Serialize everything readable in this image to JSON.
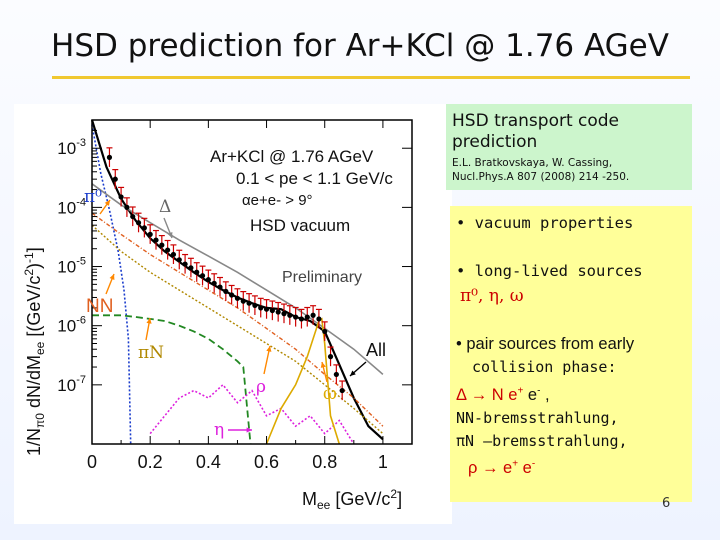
{
  "slide": {
    "title": "HSD prediction for Ar+KCl @ 1.76 AGeV",
    "page_number": "6"
  },
  "green_box": {
    "heading_line1": "HSD transport code",
    "heading_line2": "prediction",
    "ref_line1": "E.L. Bratkovskaya, W. Cassing,",
    "ref_line2": "Nucl.Phys.A 807 (2008) 214 -250."
  },
  "yellow_box": {
    "b1": "• vacuum properties",
    "b2": "• long-lived sources",
    "b2_particles": "π⁰,  η,  ω",
    "b3_line1": "• pair sources from early",
    "b3_line2": "collision phase:",
    "b3_line3_pre": "Δ → N e",
    "b3_line3_sup1": "+",
    "b3_line3_mid": " e",
    "b3_line3_sup2": "-",
    "b3_line3_post": " ,",
    "b3_line4": "NN-bremsstrahlung,",
    "b3_line5": "πN –bremsstrahlung,",
    "b3_line6_pre": "ρ → e",
    "b3_line6_sup1": "+",
    "b3_line6_mid": " e",
    "b3_line6_sup2": "-"
  },
  "chart_data": {
    "type": "line",
    "yscale": "log",
    "xlim": [
      0,
      1.1
    ],
    "ylim": [
      1e-08,
      0.003
    ],
    "xticks": [
      0,
      0.2,
      0.4,
      0.6,
      0.8,
      1
    ],
    "xtick_labels": [
      "0",
      "0.2",
      "0.4",
      "0.6",
      "0.8",
      "1"
    ],
    "ytick_labels": [
      "10-7",
      "10-6",
      "10-5",
      "10-4",
      "10-3"
    ],
    "ytick_values": [
      1e-07,
      1e-06,
      1e-05,
      0.0001,
      0.001
    ],
    "xlabel": "Mee [GeV/c²]",
    "ylabel": "1/Nπ0 dN/dMee [(GeV/c²)-1]",
    "legend": {
      "line1": "Ar+KCl @ 1.76 AGeV",
      "line2": "0.1 < pe < 1.1 GeV/c",
      "line3": "αe+e- > 9°",
      "line4": "HSD vacuum"
    },
    "annotations": {
      "preliminary": "Preliminary",
      "pi0": "π⁰",
      "delta": "Δ",
      "nn": "NN",
      "pin": "πN",
      "rho": "ρ",
      "omega": "ω",
      "eta": "η",
      "all": "All"
    },
    "colors": {
      "all": "#000000",
      "pi0": "#1a3ccc",
      "delta": "#888888",
      "nn": "#e06020",
      "pin": "#b08800",
      "rho": "#dd22dd",
      "omega": "#ddaa00",
      "eta": "#228822",
      "data": "#000000",
      "errorbar": "#cc0000",
      "arrow": "#ff8800"
    },
    "series": [
      {
        "name": "All",
        "x": [
          0.0,
          0.05,
          0.1,
          0.15,
          0.2,
          0.25,
          0.3,
          0.35,
          0.4,
          0.45,
          0.5,
          0.55,
          0.6,
          0.65,
          0.7,
          0.75,
          0.8,
          0.85,
          0.9,
          0.95,
          1.0
        ],
        "y": [
          0.003,
          0.00048,
          0.00014,
          6e-05,
          3e-05,
          1.8e-05,
          1.2e-05,
          8e-06,
          5.5e-06,
          4e-06,
          3e-06,
          2.4e-06,
          2e-06,
          1.9e-06,
          1.4e-06,
          1.2e-06,
          8e-07,
          2.2e-07,
          6e-08,
          2e-08,
          1.2e-08
        ]
      },
      {
        "name": "π⁰",
        "x": [
          0.0,
          0.03,
          0.06,
          0.09,
          0.11,
          0.125,
          0.133
        ],
        "y": [
          0.0025,
          0.00038,
          9e-05,
          1.8e-05,
          4e-06,
          6e-07,
          1e-08
        ]
      },
      {
        "name": "Δ",
        "x": [
          0.0,
          0.1,
          0.2,
          0.3,
          0.4,
          0.5,
          0.6,
          0.7,
          0.8,
          0.9,
          1.0
        ],
        "y": [
          0.00025,
          0.00011,
          5.5e-05,
          2.8e-05,
          1.5e-05,
          8e-06,
          4e-06,
          2e-06,
          9e-07,
          4e-07,
          1.5e-07
        ]
      },
      {
        "name": "NN",
        "x": [
          0.0,
          0.1,
          0.2,
          0.3,
          0.4,
          0.5,
          0.6,
          0.7,
          0.8,
          0.9,
          1.0
        ],
        "y": [
          8e-05,
          3.5e-05,
          1.6e-05,
          8e-06,
          4e-06,
          2e-06,
          9e-07,
          4e-07,
          1.5e-07,
          6e-08,
          2e-08
        ]
      },
      {
        "name": "πN",
        "x": [
          0.0,
          0.1,
          0.2,
          0.3,
          0.4,
          0.5,
          0.6,
          0.7,
          0.8,
          0.9,
          1.0
        ],
        "y": [
          5e-05,
          1.8e-05,
          8e-06,
          4e-06,
          2e-06,
          1e-06,
          5e-07,
          2.5e-07,
          1e-07,
          4e-08,
          1.5e-08
        ]
      },
      {
        "name": "η",
        "x": [
          0.0,
          0.05,
          0.1,
          0.15,
          0.2,
          0.25,
          0.3,
          0.35,
          0.4,
          0.45,
          0.5,
          0.52,
          0.545
        ],
        "y": [
          1.5e-06,
          1.5e-06,
          1.5e-06,
          1.4e-06,
          1.3e-06,
          1.2e-06,
          1e-06,
          8e-07,
          6e-07,
          4e-07,
          2.5e-07,
          2e-07,
          1e-08
        ]
      },
      {
        "name": "ρ",
        "x": [
          0.2,
          0.25,
          0.3,
          0.35,
          0.4,
          0.45,
          0.5,
          0.55,
          0.6,
          0.65,
          0.7,
          0.75,
          0.8,
          0.85,
          0.9
        ],
        "y": [
          1.5e-08,
          3e-08,
          6e-08,
          8e-08,
          6e-08,
          1e-07,
          5e-08,
          8e-08,
          3e-08,
          4e-08,
          2e-08,
          3e-08,
          1.5e-08,
          2.5e-08,
          1e-08
        ]
      },
      {
        "name": "ω",
        "x": [
          0.6,
          0.65,
          0.7,
          0.74,
          0.76,
          0.78,
          0.79,
          0.8,
          0.82,
          0.85
        ],
        "y": [
          1e-08,
          4e-08,
          1e-07,
          3e-07,
          6e-07,
          1.2e-06,
          1.3e-06,
          5e-07,
          3e-08,
          1e-08
        ]
      }
    ],
    "data_points": {
      "x": [
        0.06,
        0.08,
        0.1,
        0.12,
        0.14,
        0.16,
        0.18,
        0.2,
        0.22,
        0.24,
        0.26,
        0.28,
        0.3,
        0.32,
        0.34,
        0.36,
        0.38,
        0.4,
        0.42,
        0.44,
        0.46,
        0.48,
        0.5,
        0.52,
        0.54,
        0.56,
        0.58,
        0.6,
        0.62,
        0.64,
        0.66,
        0.68,
        0.7,
        0.72,
        0.74,
        0.76,
        0.78,
        0.8,
        0.82,
        0.84,
        0.86
      ],
      "y": [
        0.0007,
        0.0003,
        0.00015,
        0.0001,
        7e-05,
        5.5e-05,
        4.5e-05,
        3.5e-05,
        2.8e-05,
        2.3e-05,
        1.9e-05,
        1.6e-05,
        1.3e-05,
        1.1e-05,
        9.5e-06,
        8e-06,
        7e-06,
        6e-06,
        5.2e-06,
        4.5e-06,
        3.8e-06,
        3.3e-06,
        2.9e-06,
        2.6e-06,
        2.4e-06,
        2.2e-06,
        2e-06,
        1.9e-06,
        1.8e-06,
        1.7e-06,
        1.6e-06,
        1.5e-06,
        1.4e-06,
        1.3e-06,
        1.4e-06,
        1.5e-06,
        1.3e-06,
        8e-07,
        3e-07,
        1.5e-07,
        8e-08
      ]
    }
  }
}
